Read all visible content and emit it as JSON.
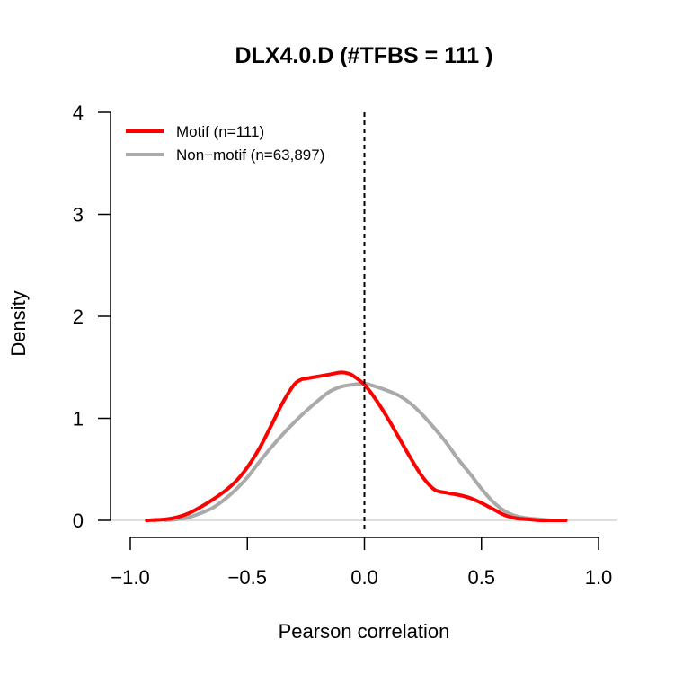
{
  "chart_data": {
    "type": "line",
    "title": "DLX4.0.D (#TFBS = 111 )",
    "xlabel": "Pearson correlation",
    "ylabel": "Density",
    "xlim": [
      -1.0,
      1.0
    ],
    "ylim": [
      0,
      4
    ],
    "x_ticks": [
      -1.0,
      -0.5,
      0.0,
      0.5,
      1.0
    ],
    "x_tick_labels": [
      "−1.0",
      "−0.5",
      "0.0",
      "0.5",
      "1.0"
    ],
    "y_ticks": [
      0,
      1,
      2,
      3,
      4
    ],
    "y_tick_labels": [
      "0",
      "1",
      "2",
      "3",
      "4"
    ],
    "reference_line": {
      "x": 0.0,
      "style": "dashed",
      "color": "#000000"
    },
    "baseline": {
      "y": 0,
      "color": "#bebebe"
    },
    "legend_position": "top-left",
    "series": [
      {
        "name": "Motif (n=111)",
        "color": "#ff0000",
        "x": [
          -0.93,
          -0.85,
          -0.8,
          -0.75,
          -0.7,
          -0.65,
          -0.6,
          -0.55,
          -0.5,
          -0.45,
          -0.4,
          -0.35,
          -0.3,
          -0.27,
          -0.25,
          -0.2,
          -0.15,
          -0.1,
          -0.07,
          -0.05,
          0.0,
          0.05,
          0.1,
          0.15,
          0.2,
          0.25,
          0.3,
          0.35,
          0.4,
          0.45,
          0.5,
          0.55,
          0.6,
          0.65,
          0.7,
          0.75,
          0.8,
          0.86
        ],
        "y": [
          0.0,
          0.01,
          0.03,
          0.07,
          0.13,
          0.2,
          0.28,
          0.38,
          0.52,
          0.7,
          0.92,
          1.15,
          1.33,
          1.38,
          1.39,
          1.41,
          1.43,
          1.45,
          1.44,
          1.42,
          1.33,
          1.18,
          1.0,
          0.8,
          0.6,
          0.42,
          0.3,
          0.27,
          0.25,
          0.22,
          0.17,
          0.11,
          0.05,
          0.02,
          0.01,
          0.0,
          0.0,
          0.0
        ]
      },
      {
        "name": "Non−motif (n=63,897)",
        "color": "#aaaaaa",
        "x": [
          -0.85,
          -0.8,
          -0.75,
          -0.7,
          -0.65,
          -0.6,
          -0.55,
          -0.5,
          -0.45,
          -0.4,
          -0.35,
          -0.3,
          -0.25,
          -0.2,
          -0.15,
          -0.1,
          -0.05,
          0.0,
          0.05,
          0.1,
          0.15,
          0.2,
          0.25,
          0.3,
          0.35,
          0.4,
          0.45,
          0.5,
          0.55,
          0.6,
          0.65,
          0.7,
          0.75,
          0.8,
          0.86
        ],
        "y": [
          0.0,
          0.01,
          0.03,
          0.07,
          0.12,
          0.2,
          0.3,
          0.42,
          0.57,
          0.71,
          0.84,
          0.96,
          1.07,
          1.17,
          1.26,
          1.31,
          1.33,
          1.34,
          1.31,
          1.27,
          1.22,
          1.14,
          1.03,
          0.9,
          0.76,
          0.6,
          0.46,
          0.31,
          0.18,
          0.09,
          0.04,
          0.02,
          0.01,
          0.0,
          0.0
        ]
      }
    ]
  }
}
